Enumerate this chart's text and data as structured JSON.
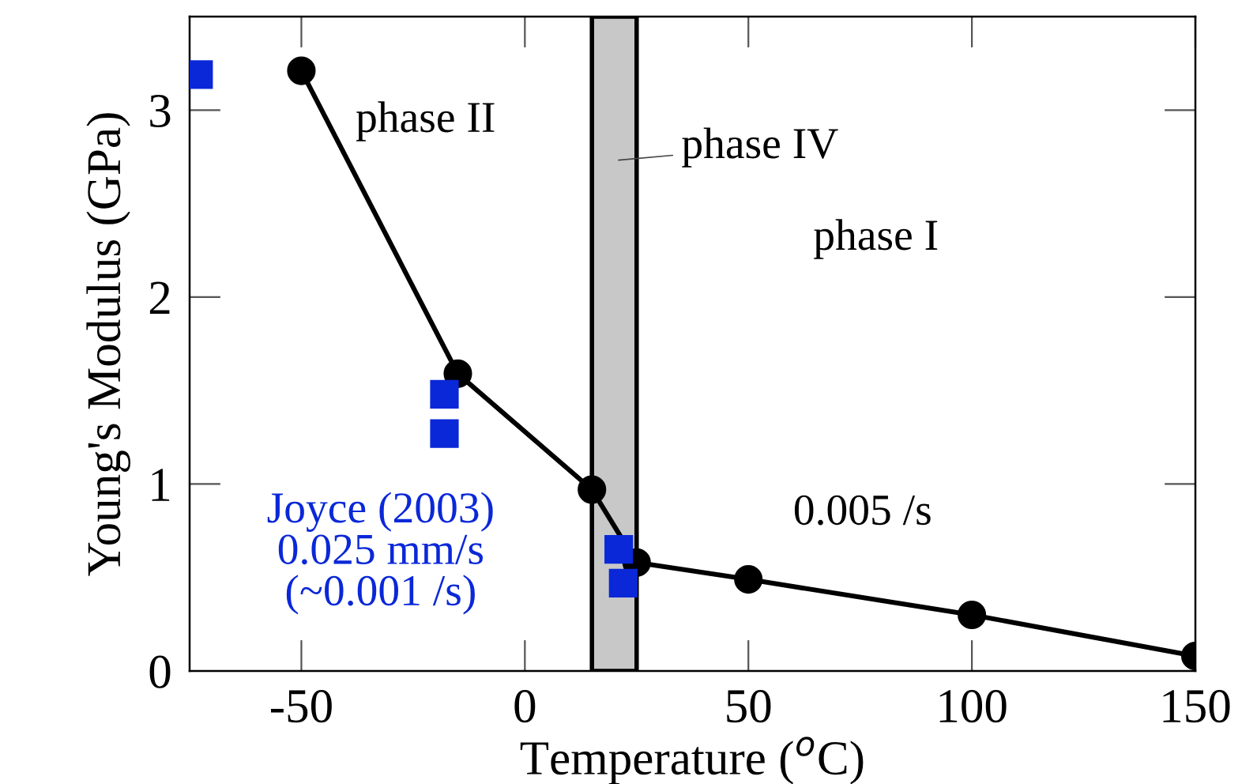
{
  "chart_data": {
    "type": "line",
    "xlabel": "Temperature ($^{o}$C)",
    "ylabel": "Young's Modulus (GPa)",
    "xlim": [
      -75,
      150
    ],
    "ylim": [
      0,
      3.5
    ],
    "xticks": [
      -50,
      0,
      50,
      100,
      150
    ],
    "yticks": [
      0,
      1,
      2,
      3
    ],
    "grid": false,
    "legend": false,
    "series": [
      {
        "name": "0.005 /s",
        "color": "#000000",
        "marker": "circle",
        "line_style": "solid",
        "x": [
          -50,
          -15,
          15,
          25,
          50,
          100,
          150
        ],
        "values": [
          3.21,
          1.59,
          0.97,
          0.58,
          0.49,
          0.3,
          0.08
        ]
      },
      {
        "name": "Joyce (2003)\n0.025 mm/s\n(~0.001 /s)",
        "type": "scatter",
        "color": "#0a28d8",
        "marker": "square",
        "x": [
          -73,
          -18,
          -18,
          21,
          22
        ],
        "values": [
          3.19,
          1.48,
          1.27,
          0.65,
          0.47
        ]
      }
    ],
    "bands": [
      {
        "axis": "x",
        "from": 15,
        "to": 25,
        "label": "phase IV",
        "color": "#c8c8c8"
      }
    ],
    "annotations": [
      "phase II",
      "phase I"
    ]
  }
}
